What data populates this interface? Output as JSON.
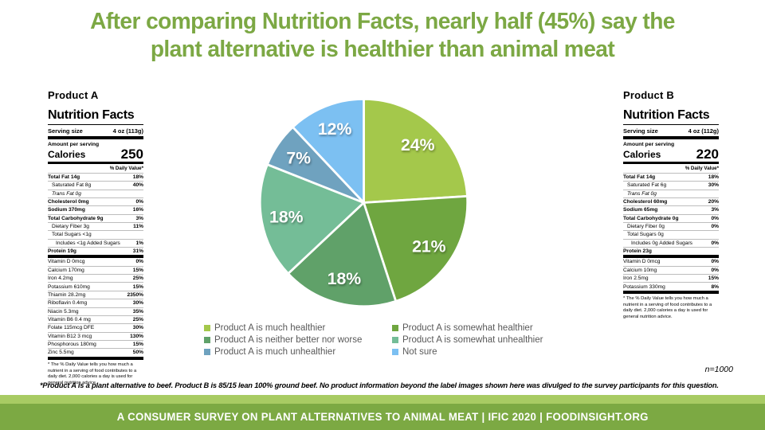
{
  "title": {
    "line1": "After comparing Nutrition Facts, nearly half (45%) say the",
    "line2": "plant alternative is healthier than animal meat"
  },
  "colors": {
    "title_green": "#7CA844",
    "footer_bar_green": "#7CA943",
    "footer_stripe_green": "#A8CB63",
    "legend_text_gray": "#595959"
  },
  "chart_data": {
    "type": "pie",
    "start_angle_deg": 0,
    "direction": "clockwise",
    "labels": [
      "Product A is much healthier",
      "Product A is somewhat healthier",
      "Product A is neither better nor worse",
      "Product A is somewhat unhealthier",
      "Product A is much unhealthier",
      "Not sure"
    ],
    "values": [
      24,
      21,
      18,
      18,
      7,
      12
    ],
    "slice_colors": [
      "#A4C84B",
      "#6FA640",
      "#60A169",
      "#74BD97",
      "#6FA2BF",
      "#7CC0F2"
    ],
    "data_label_format": "percent",
    "legend_position": "bottom"
  },
  "product_a": {
    "name": "Product A",
    "heading": "Nutrition Facts",
    "serving_label": "Serving size",
    "serving_value": "4 oz (113g)",
    "amount_label": "Amount per serving",
    "calories_label": "Calories",
    "calories_value": "250",
    "dv_header": "% Daily Value*",
    "main_rows": [
      {
        "name": "Total Fat 14g",
        "dv": "18%",
        "bold": true
      },
      {
        "name": "Saturated Fat 8g",
        "dv": "40%",
        "indent": 1
      },
      {
        "name": "Trans Fat 0g",
        "dv": "",
        "indent": 1,
        "italic": true
      },
      {
        "name": "Cholesterol 0mg",
        "dv": "0%",
        "bold": true
      },
      {
        "name": "Sodium 370mg",
        "dv": "16%",
        "bold": true
      },
      {
        "name": "Total Carbohydrate 9g",
        "dv": "3%",
        "bold": true
      },
      {
        "name": "Dietary Fiber 3g",
        "dv": "11%",
        "indent": 1
      },
      {
        "name": "Total Sugars <1g",
        "dv": "",
        "indent": 1
      },
      {
        "name": "Includes <1g Added Sugars",
        "dv": "1%",
        "indent": 2
      },
      {
        "name": "Protein 19g",
        "dv": "31%",
        "bold": true
      }
    ],
    "vitamin_rows": [
      {
        "name": "Vitamin D 0mcg",
        "dv": "0%"
      },
      {
        "name": "Calcium 170mg",
        "dv": "15%"
      },
      {
        "name": "Iron 4.2mg",
        "dv": "25%"
      },
      {
        "name": "Potassium 610mg",
        "dv": "15%"
      },
      {
        "name": "Thiamin 28.2mg",
        "dv": "2350%"
      },
      {
        "name": "Riboflavin 0.4mg",
        "dv": "30%"
      },
      {
        "name": "Niacin 5.3mg",
        "dv": "35%"
      },
      {
        "name": "Vitamin B6 0.4 mg",
        "dv": "25%"
      },
      {
        "name": "Folate 115mcg DFE",
        "dv": "30%"
      },
      {
        "name": "Vitamin B12 3 mcg",
        "dv": "130%"
      },
      {
        "name": "Phosphorous 180mg",
        "dv": "15%"
      },
      {
        "name": "Zinc 5.5mg",
        "dv": "50%"
      }
    ],
    "footnote": "* The % Daily Value tells you how much a nutrient in a serving of food contributes to a daily diet. 2,000 calories a day is used for general nutrition advice."
  },
  "product_b": {
    "name": "Product B",
    "heading": "Nutrition Facts",
    "serving_label": "Serving size",
    "serving_value": "4 oz (112g)",
    "amount_label": "Amount per serving",
    "calories_label": "Calories",
    "calories_value": "220",
    "dv_header": "% Daily Value*",
    "main_rows": [
      {
        "name": "Total Fat 14g",
        "dv": "18%",
        "bold": true
      },
      {
        "name": "Saturated Fat 6g",
        "dv": "30%",
        "indent": 1
      },
      {
        "name": "Trans Fat 0g",
        "dv": "",
        "indent": 1,
        "italic": true
      },
      {
        "name": "Cholesterol 60mg",
        "dv": "20%",
        "bold": true
      },
      {
        "name": "Sodium 65mg",
        "dv": "3%",
        "bold": true
      },
      {
        "name": "Total Carbohydrate 0g",
        "dv": "0%",
        "bold": true
      },
      {
        "name": "Dietary Fiber 0g",
        "dv": "0%",
        "indent": 1
      },
      {
        "name": "Total Sugars 0g",
        "dv": "",
        "indent": 1
      },
      {
        "name": "Includes 0g Added Sugars",
        "dv": "0%",
        "indent": 2
      },
      {
        "name": "Protein 23g",
        "dv": "",
        "bold": true
      }
    ],
    "vitamin_rows": [
      {
        "name": "Vitamin D 0mcg",
        "dv": "0%"
      },
      {
        "name": "Calcium 10mg",
        "dv": "0%"
      },
      {
        "name": "Iron 2.5mg",
        "dv": "15%"
      },
      {
        "name": "Potassium 330mg",
        "dv": "8%"
      }
    ],
    "footnote": "* The % Daily Value tells you how much a nutrient in a serving of food contributes to a daily diet. 2,000 calories a day is used for general nutrition advice."
  },
  "notes": {
    "n_label": "n=1000",
    "footnote": "*Product A is a plant alternative to beef. Product B is 85/15 lean 100% ground beef. No product information beyond the label images shown here was divulged to the survey participants for this question."
  },
  "footer": {
    "text": "A CONSUMER SURVEY ON PLANT ALTERNATIVES TO ANIMAL MEAT | IFIC 2020 | FOODINSIGHT.ORG"
  }
}
